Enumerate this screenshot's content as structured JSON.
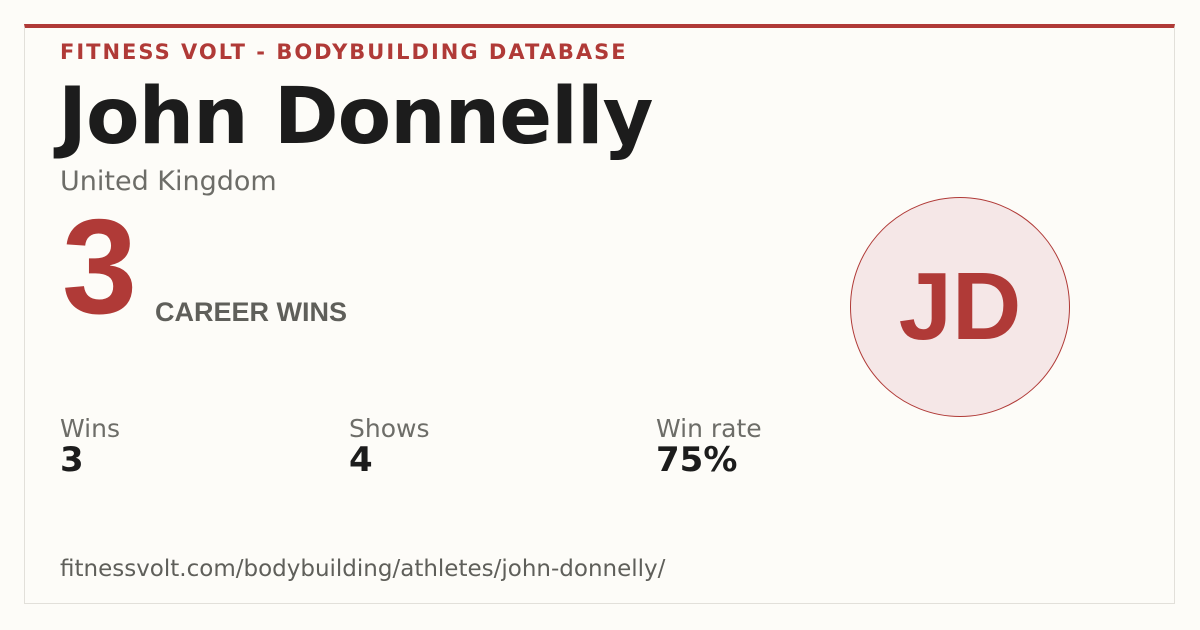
{
  "header": {
    "site": "FITNESS VOLT - BODYBUILDING DATABASE",
    "name": "John Donnelly",
    "country": "United Kingdom"
  },
  "headline": {
    "number": "3",
    "label": "CAREER WINS"
  },
  "avatar": {
    "initials": "JD"
  },
  "stats": [
    {
      "label": "Wins",
      "value": "3"
    },
    {
      "label": "Shows",
      "value": "4"
    },
    {
      "label": "Win rate",
      "value": "75%"
    }
  ],
  "footer": {
    "url": "fitnessvolt.com/bodybuilding/athletes/john-donnelly/"
  }
}
